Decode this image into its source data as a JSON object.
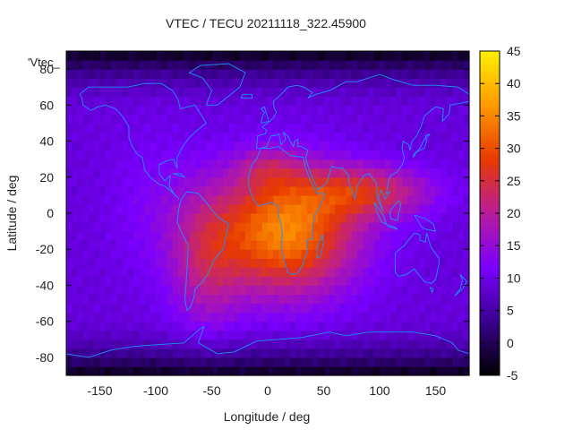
{
  "chart_data": {
    "type": "heatmap",
    "title": "VTEC / TECU 20211118_322.45900",
    "xlabel": "Longitude / deg",
    "ylabel": "Latitude / deg",
    "xlim": [
      -180,
      180
    ],
    "ylim": [
      -90,
      90
    ],
    "x_ticks": [
      -150,
      -100,
      -50,
      0,
      50,
      100,
      150
    ],
    "y_ticks": [
      -80,
      -60,
      -40,
      -20,
      0,
      20,
      40,
      60,
      80
    ],
    "colorbar": {
      "range": [
        -5,
        45
      ],
      "ticks": [
        -5,
        0,
        5,
        10,
        15,
        20,
        25,
        30,
        35,
        40,
        45
      ],
      "colormap": [
        "#000000",
        "#3a0090",
        "#7a00ff",
        "#b81c9a",
        "#e83a00",
        "#ff9a00",
        "#fff000"
      ]
    },
    "legend_entry": "'Vtec_",
    "field": {
      "background_tecu": 9,
      "grid_step_deg": 5,
      "anomalies": [
        {
          "lon": 15,
          "lat": -10,
          "sigma_lon": 45,
          "sigma_lat": 24,
          "amplitude": 26
        },
        {
          "lon": 90,
          "lat": 12,
          "sigma_lon": 40,
          "sigma_lat": 10,
          "amplitude": 14
        },
        {
          "lon": -55,
          "lat": -28,
          "sigma_lon": 22,
          "sigma_lat": 26,
          "amplitude": 9
        },
        {
          "lon": 0,
          "lat": 25,
          "sigma_lon": 20,
          "sigma_lat": 8,
          "amplitude": 6
        },
        {
          "lon": -100,
          "lat": 5,
          "sigma_lon": 30,
          "sigma_lat": 30,
          "amplitude": 3
        }
      ],
      "polar_cap_tecu": -4
    },
    "coastline_color": "#1e90ff"
  }
}
